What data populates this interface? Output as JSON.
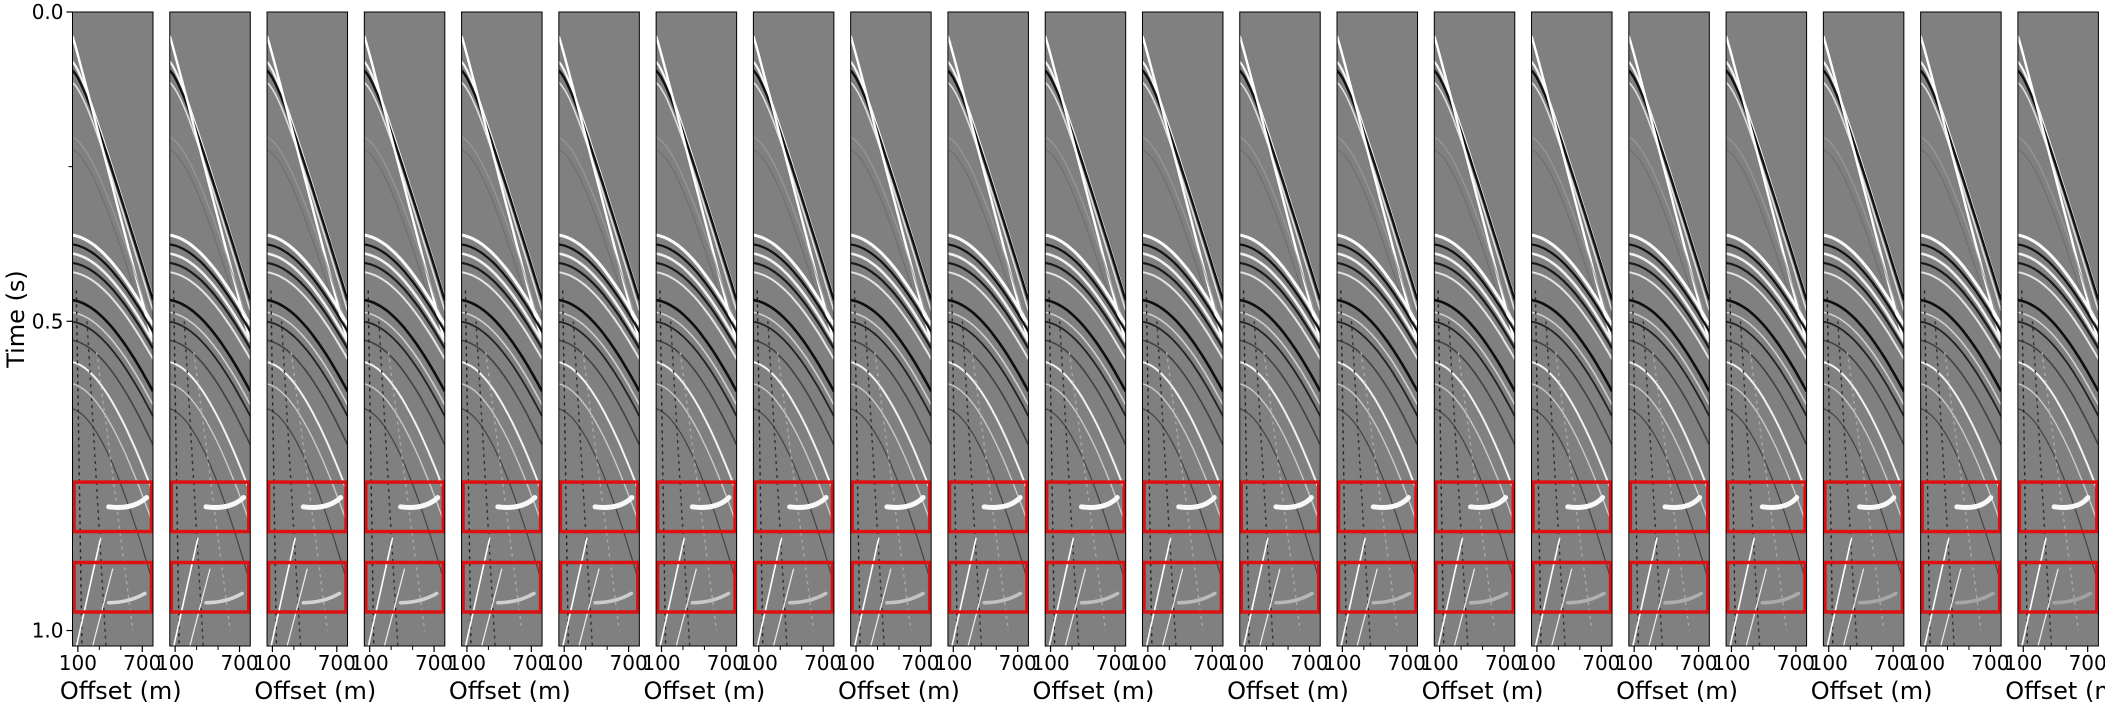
{
  "chart_data": [
    {
      "type": "image",
      "ylabel": "Time (s)",
      "ylim": [
        0,
        1.025
      ],
      "yticks": [
        {
          "value": 0,
          "label": "0.0"
        },
        {
          "value": 0.5,
          "label": "0.5"
        },
        {
          "value": 1,
          "label": "1.0"
        }
      ],
      "yminor": [
        0.25
      ],
      "xlim": [
        50,
        800
      ],
      "xticks": [
        100,
        700
      ],
      "xminor": [
        300,
        500
      ],
      "xlabel": "Offset (m)",
      "highlights": [
        [
          0.76,
          0.84
        ],
        [
          0.89,
          0.97
        ]
      ],
      "highlight_color": "#dd1111"
    },
    {
      "type": "image",
      "ylim": [
        0,
        1.025
      ],
      "xlim": [
        50,
        800
      ],
      "xticks": [
        100,
        700
      ],
      "xminor": [
        300,
        500
      ],
      "highlights": [
        [
          0.76,
          0.84
        ],
        [
          0.89,
          0.97
        ]
      ],
      "highlight_color": "#dd1111"
    },
    {
      "type": "image",
      "ylim": [
        0,
        1.025
      ],
      "xlim": [
        50,
        800
      ],
      "xticks": [
        100,
        700
      ],
      "xminor": [
        300,
        500
      ],
      "xlabel": "Offset (m)",
      "highlights": [
        [
          0.76,
          0.84
        ],
        [
          0.89,
          0.97
        ]
      ],
      "highlight_color": "#dd1111"
    },
    {
      "type": "image",
      "ylim": [
        0,
        1.025
      ],
      "xlim": [
        50,
        800
      ],
      "xticks": [
        100,
        700
      ],
      "xminor": [
        300,
        500
      ],
      "highlights": [
        [
          0.76,
          0.84
        ],
        [
          0.89,
          0.97
        ]
      ],
      "highlight_color": "#dd1111"
    },
    {
      "type": "image",
      "ylim": [
        0,
        1.025
      ],
      "xlim": [
        50,
        800
      ],
      "xticks": [
        100,
        700
      ],
      "xminor": [
        300,
        500
      ],
      "xlabel": "Offset (m)",
      "highlights": [
        [
          0.76,
          0.84
        ],
        [
          0.89,
          0.97
        ]
      ],
      "highlight_color": "#dd1111"
    },
    {
      "type": "image",
      "ylim": [
        0,
        1.025
      ],
      "xlim": [
        50,
        800
      ],
      "xticks": [
        100,
        700
      ],
      "xminor": [
        300,
        500
      ],
      "highlights": [
        [
          0.76,
          0.84
        ],
        [
          0.89,
          0.97
        ]
      ],
      "highlight_color": "#dd1111"
    },
    {
      "type": "image",
      "ylim": [
        0,
        1.025
      ],
      "xlim": [
        50,
        800
      ],
      "xticks": [
        100,
        700
      ],
      "xminor": [
        300,
        500
      ],
      "xlabel": "Offset (m)",
      "highlights": [
        [
          0.76,
          0.84
        ],
        [
          0.89,
          0.97
        ]
      ],
      "highlight_color": "#dd1111"
    },
    {
      "type": "image",
      "ylim": [
        0,
        1.025
      ],
      "xlim": [
        50,
        800
      ],
      "xticks": [
        100,
        700
      ],
      "xminor": [
        300,
        500
      ],
      "highlights": [
        [
          0.76,
          0.84
        ],
        [
          0.89,
          0.97
        ]
      ],
      "highlight_color": "#dd1111"
    },
    {
      "type": "image",
      "ylim": [
        0,
        1.025
      ],
      "xlim": [
        50,
        800
      ],
      "xticks": [
        100,
        700
      ],
      "xminor": [
        300,
        500
      ],
      "xlabel": "Offset (m)",
      "highlights": [
        [
          0.76,
          0.84
        ],
        [
          0.89,
          0.97
        ]
      ],
      "highlight_color": "#dd1111"
    },
    {
      "type": "image",
      "ylim": [
        0,
        1.025
      ],
      "xlim": [
        50,
        800
      ],
      "xticks": [
        100,
        700
      ],
      "xminor": [
        300,
        500
      ],
      "highlights": [
        [
          0.76,
          0.84
        ],
        [
          0.89,
          0.97
        ]
      ],
      "highlight_color": "#dd1111"
    },
    {
      "type": "image",
      "ylim": [
        0,
        1.025
      ],
      "xlim": [
        50,
        800
      ],
      "xticks": [
        100,
        700
      ],
      "xminor": [
        300,
        500
      ],
      "xlabel": "Offset (m)",
      "highlights": [
        [
          0.76,
          0.84
        ],
        [
          0.89,
          0.97
        ]
      ],
      "highlight_color": "#dd1111"
    },
    {
      "type": "image",
      "ylim": [
        0,
        1.025
      ],
      "xlim": [
        50,
        800
      ],
      "xticks": [
        100,
        700
      ],
      "xminor": [
        300,
        500
      ],
      "highlights": [
        [
          0.76,
          0.84
        ],
        [
          0.89,
          0.97
        ]
      ],
      "highlight_color": "#dd1111"
    },
    {
      "type": "image",
      "ylim": [
        0,
        1.025
      ],
      "xlim": [
        50,
        800
      ],
      "xticks": [
        100,
        700
      ],
      "xminor": [
        300,
        500
      ],
      "xlabel": "Offset (m)",
      "highlights": [
        [
          0.76,
          0.84
        ],
        [
          0.89,
          0.97
        ]
      ],
      "highlight_color": "#dd1111"
    },
    {
      "type": "image",
      "ylim": [
        0,
        1.025
      ],
      "xlim": [
        50,
        800
      ],
      "xticks": [
        100,
        700
      ],
      "xminor": [
        300,
        500
      ],
      "highlights": [
        [
          0.76,
          0.84
        ],
        [
          0.89,
          0.97
        ]
      ],
      "highlight_color": "#dd1111"
    },
    {
      "type": "image",
      "ylim": [
        0,
        1.025
      ],
      "xlim": [
        50,
        800
      ],
      "xticks": [
        100,
        700
      ],
      "xminor": [
        300,
        500
      ],
      "xlabel": "Offset (m)",
      "highlights": [
        [
          0.76,
          0.84
        ],
        [
          0.89,
          0.97
        ]
      ],
      "highlight_color": "#dd1111"
    },
    {
      "type": "image",
      "ylim": [
        0,
        1.025
      ],
      "xlim": [
        50,
        800
      ],
      "xticks": [
        100,
        700
      ],
      "xminor": [
        300,
        500
      ],
      "highlights": [
        [
          0.76,
          0.84
        ],
        [
          0.89,
          0.97
        ]
      ],
      "highlight_color": "#dd1111"
    },
    {
      "type": "image",
      "ylim": [
        0,
        1.025
      ],
      "xlim": [
        50,
        800
      ],
      "xticks": [
        100,
        700
      ],
      "xminor": [
        300,
        500
      ],
      "xlabel": "Offset (m)",
      "highlights": [
        [
          0.76,
          0.84
        ],
        [
          0.89,
          0.97
        ]
      ],
      "highlight_color": "#dd1111"
    },
    {
      "type": "image",
      "ylim": [
        0,
        1.025
      ],
      "xlim": [
        50,
        800
      ],
      "xticks": [
        100,
        700
      ],
      "xminor": [
        300,
        500
      ],
      "highlights": [
        [
          0.76,
          0.84
        ],
        [
          0.89,
          0.97
        ]
      ],
      "highlight_color": "#dd1111"
    },
    {
      "type": "image",
      "ylim": [
        0,
        1.025
      ],
      "xlim": [
        50,
        800
      ],
      "xticks": [
        100,
        700
      ],
      "xminor": [
        300,
        500
      ],
      "xlabel": "Offset (m)",
      "highlights": [
        [
          0.76,
          0.84
        ],
        [
          0.89,
          0.97
        ]
      ],
      "highlight_color": "#dd1111"
    },
    {
      "type": "image",
      "ylim": [
        0,
        1.025
      ],
      "xlim": [
        50,
        800
      ],
      "xticks": [
        100,
        700
      ],
      "xminor": [
        300,
        500
      ],
      "highlights": [
        [
          0.76,
          0.84
        ],
        [
          0.89,
          0.97
        ]
      ],
      "highlight_color": "#dd1111"
    },
    {
      "type": "image",
      "ylim": [
        0,
        1.025
      ],
      "xlim": [
        50,
        800
      ],
      "xticks": [
        100,
        700
      ],
      "xminor": [
        300,
        500
      ],
      "xlabel": "Offset (m)",
      "highlights": [
        [
          0.76,
          0.84
        ],
        [
          0.89,
          0.97
        ]
      ],
      "highlight_color": "#dd1111"
    }
  ]
}
